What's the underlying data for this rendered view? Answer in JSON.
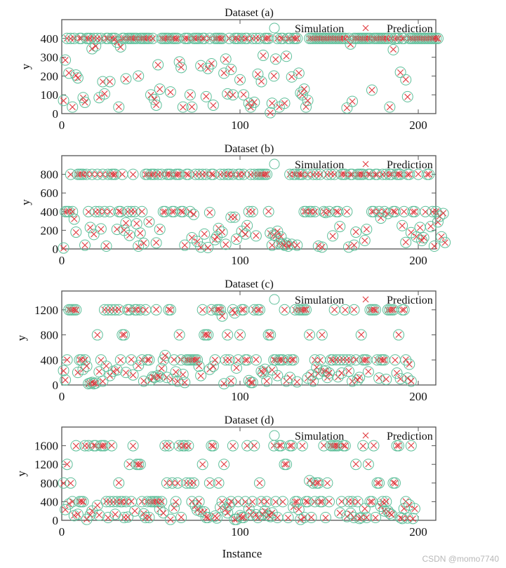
{
  "figure": {
    "xlabel": "Instance",
    "watermark": "CSDN @momo7740",
    "colors": {
      "simulation": "#5fbf9a",
      "prediction": "#e0393e",
      "axis": "#555555"
    }
  },
  "legend": {
    "simulation": "Simulation",
    "prediction": "Prediction"
  },
  "chart_data": [
    {
      "type": "scatter",
      "title": "Dataset (a)",
      "xlabel": "",
      "ylabel": "y",
      "xlim": [
        0,
        210
      ],
      "ylim": [
        0,
        500
      ],
      "xticks": [
        0,
        100,
        200
      ],
      "yticks": [
        0,
        100,
        200,
        300,
        400
      ],
      "legend": [
        "Simulation",
        "Prediction"
      ],
      "x_start": 1,
      "series": [
        {
          "name": "Simulation",
          "marker": "circle",
          "values": [
            70,
            285,
            400,
            215,
            400,
            35,
            400,
            205,
            190,
            400,
            400,
            85,
            60,
            400,
            400,
            400,
            345,
            400,
            360,
            400,
            85,
            400,
            170,
            105,
            400,
            400,
            170,
            400,
            400,
            400,
            380,
            35,
            355,
            400,
            400,
            185,
            400,
            400,
            400,
            400,
            400,
            400,
            200,
            400,
            400,
            400,
            400,
            400,
            400,
            100,
            400,
            75,
            45,
            260,
            130,
            400,
            400,
            400,
            400,
            400,
            115,
            400,
            400,
            400,
            400,
            275,
            245,
            35,
            400,
            400,
            400,
            100,
            35,
            400,
            400,
            400,
            400,
            255,
            400,
            400,
            90,
            240,
            400,
            265,
            45,
            400,
            400,
            400,
            400,
            400,
            215,
            290,
            105,
            400,
            235,
            100,
            400,
            400,
            400,
            180,
            400,
            100,
            400,
            400,
            55,
            35,
            400,
            60,
            400,
            210,
            400,
            170,
            310,
            400,
            400,
            400,
            5,
            55,
            200,
            290,
            400,
            35,
            400,
            400,
            55,
            305,
            400,
            400,
            195,
            400,
            400,
            400,
            215,
            110,
            100,
            130,
            35,
            70,
            400,
            400,
            400,
            400,
            400,
            400,
            400,
            400,
            400,
            400,
            400,
            400,
            400,
            400,
            400,
            400,
            400,
            400,
            400,
            400,
            400,
            30,
            400,
            370,
            65,
            400,
            400,
            400,
            400,
            400,
            400,
            400,
            400,
            400,
            400,
            125,
            400,
            400,
            400,
            400,
            400,
            400,
            400,
            400,
            400,
            35,
            400,
            340,
            400,
            400,
            400,
            220,
            400,
            400,
            180,
            90,
            400,
            400,
            400,
            400,
            400,
            400,
            400,
            400,
            400,
            400,
            400,
            400,
            400,
            400,
            400,
            400,
            400
          ]
        },
        {
          "name": "Prediction",
          "marker": "x",
          "values": "matches Simulation within ~2%"
        }
      ]
    },
    {
      "type": "scatter",
      "title": "Dataset (b)",
      "xlabel": "",
      "ylabel": "y",
      "xlim": [
        0,
        210
      ],
      "ylim": [
        0,
        1000
      ],
      "xticks": [
        0,
        100,
        200
      ],
      "yticks": [
        0,
        200,
        400,
        600,
        800
      ],
      "legend": [
        "Simulation",
        "Prediction"
      ],
      "x_start": 1,
      "series": [
        {
          "name": "Simulation",
          "marker": "circle",
          "values": [
            10,
            400,
            400,
            400,
            800,
            400,
            320,
            180,
            800,
            800,
            800,
            800,
            40,
            800,
            400,
            230,
            800,
            155,
            400,
            800,
            400,
            215,
            800,
            400,
            30,
            800,
            400,
            800,
            800,
            800,
            210,
            400,
            400,
            800,
            200,
            280,
            400,
            145,
            400,
            800,
            400,
            270,
            30,
            170,
            400,
            60,
            800,
            800,
            290,
            800,
            800,
            800,
            65,
            800,
            210,
            800,
            400,
            400,
            800,
            800,
            800,
            400,
            400,
            800,
            800,
            800,
            400,
            400,
            40,
            800,
            800,
            400,
            120,
            370,
            800,
            80,
            800,
            20,
            800,
            160,
            800,
            15,
            390,
            800,
            800,
            100,
            130,
            220,
            800,
            180,
            800,
            50,
            800,
            800,
            340,
            800,
            340,
            105,
            800,
            800,
            190,
            800,
            160,
            250,
            400,
            800,
            400,
            800,
            140,
            800,
            800,
            800,
            800,
            800,
            800,
            400,
            170,
            40,
            150,
            140,
            190,
            60,
            130,
            50,
            40,
            60,
            30,
            800,
            50,
            800,
            800,
            40,
            800,
            800,
            800,
            400,
            400,
            800,
            400,
            400,
            800,
            400,
            800,
            30,
            800,
            20,
            400,
            390,
            800,
            400,
            800,
            140,
            800,
            400,
            400,
            240,
            800,
            800,
            800,
            400,
            20,
            800,
            800,
            40,
            180,
            800,
            800,
            800,
            800,
            90,
            210,
            800,
            800,
            400,
            400,
            800,
            800,
            400,
            330,
            800,
            400,
            800,
            380,
            800,
            800,
            400,
            400,
            800,
            800,
            800,
            250,
            400,
            70,
            800,
            800,
            175,
            400,
            400,
            130,
            800,
            230,
            90,
            120,
            400,
            800,
            800,
            240,
            400,
            30,
            400,
            290,
            350,
            130,
            380,
            70
          ]
        },
        {
          "name": "Prediction",
          "marker": "x",
          "values": "matches Simulation within ~2%"
        }
      ]
    },
    {
      "type": "scatter",
      "title": "Dataset (c)",
      "xlabel": "",
      "ylabel": "y",
      "xlim": [
        0,
        210
      ],
      "ylim": [
        0,
        1500
      ],
      "xticks": [
        0,
        100,
        200
      ],
      "yticks": [
        0,
        400,
        800,
        1200
      ],
      "legend": [
        "Simulation",
        "Prediction"
      ],
      "x_start": 1,
      "series": [
        {
          "name": "Simulation",
          "marker": "circle",
          "values": [
            230,
            80,
            400,
            1200,
            1200,
            1200,
            1200,
            1200,
            200,
            400,
            400,
            250,
            400,
            300,
            20,
            30,
            40,
            20,
            30,
            800,
            210,
            400,
            60,
            1200,
            300,
            1200,
            150,
            1200,
            220,
            1200,
            240,
            1200,
            400,
            800,
            800,
            200,
            1200,
            1200,
            400,
            160,
            1200,
            1200,
            310,
            1200,
            400,
            60,
            1200,
            400,
            400,
            80,
            130,
            120,
            1200,
            150,
            130,
            260,
            400,
            470,
            120,
            1200,
            1200,
            90,
            400,
            210,
            60,
            800,
            400,
            170,
            40,
            400,
            400,
            400,
            400,
            400,
            400,
            400,
            300,
            150,
            1200,
            800,
            800,
            800,
            250,
            1200,
            300,
            400,
            1200,
            1200,
            1200,
            1100,
            20,
            400,
            800,
            400,
            60,
            1200,
            1150,
            270,
            400,
            800,
            1200,
            1200,
            400,
            400,
            70,
            40,
            40,
            1200,
            400,
            1200,
            1200,
            220,
            190,
            250,
            60,
            800,
            800,
            240,
            400,
            400,
            150,
            400,
            400,
            400,
            1200,
            60,
            400,
            120,
            400,
            400,
            1200,
            50,
            1200,
            1200,
            1200,
            1200,
            1200,
            110,
            800,
            160,
            60,
            400,
            280,
            180,
            400,
            800,
            220,
            230,
            120,
            190,
            400,
            400,
            1200,
            400,
            130,
            400,
            190,
            400,
            1200,
            400,
            220,
            400,
            60,
            1200,
            400,
            80,
            120,
            800,
            400,
            400,
            400,
            210,
            1200,
            1200,
            1200,
            1200,
            400,
            110,
            400,
            400,
            400,
            90,
            1200,
            1200,
            1200,
            1200,
            400,
            190,
            800,
            100,
            1200,
            1200,
            400,
            110,
            330,
            60
          ]
        },
        {
          "name": "Prediction",
          "marker": "x",
          "values": "matches Simulation within ~2%; outliers near x=83 (1090) and x=91 (1150)"
        }
      ]
    },
    {
      "type": "scatter",
      "title": "Dataset (d)",
      "xlabel": "Instance",
      "ylabel": "y",
      "xlim": [
        0,
        210
      ],
      "ylim": [
        0,
        2000
      ],
      "xticks": [
        0,
        100,
        200
      ],
      "yticks": [
        0,
        400,
        800,
        1200,
        1600
      ],
      "legend": [
        "Simulation",
        "Prediction"
      ],
      "x_start": 1,
      "series": [
        {
          "name": "Simulation",
          "marker": "circle",
          "values": [
            800,
            230,
            1200,
            350,
            800,
            400,
            100,
            1600,
            130,
            400,
            400,
            400,
            1600,
            20,
            1600,
            120,
            200,
            1600,
            1600,
            320,
            110,
            1600,
            1600,
            1600,
            400,
            60,
            400,
            1600,
            400,
            130,
            400,
            800,
            400,
            400,
            60,
            400,
            70,
            1200,
            400,
            1600,
            200,
            1200,
            1200,
            1200,
            400,
            140,
            60,
            400,
            60,
            400,
            400,
            400,
            400,
            400,
            240,
            400,
            160,
            1600,
            800,
            1600,
            20,
            800,
            260,
            400,
            800,
            1600,
            60,
            1600,
            1600,
            800,
            1600,
            800,
            400,
            800,
            310,
            220,
            400,
            190,
            1200,
            180,
            60,
            60,
            800,
            1600,
            1600,
            90,
            50,
            800,
            280,
            400,
            1200,
            240,
            160,
            330,
            400,
            1600,
            20,
            20,
            400,
            100,
            60,
            60,
            400,
            1600,
            250,
            120,
            400,
            1600,
            120,
            60,
            800,
            400,
            130,
            200,
            400,
            100,
            80,
            160,
            1600,
            400,
            60,
            1600,
            1600,
            400,
            1200,
            1200,
            60,
            1600,
            1600,
            280,
            400,
            400,
            230,
            20,
            1600,
            60,
            400,
            400,
            850,
            60,
            800,
            400,
            800,
            800,
            400,
            400,
            1600,
            60,
            800,
            400,
            1600,
            1600,
            1600,
            1600,
            1600,
            160,
            400,
            1600,
            1600,
            80,
            400,
            150,
            400,
            60,
            1200,
            400,
            40,
            60,
            1600,
            250,
            60,
            1200,
            400,
            400,
            1600,
            60,
            800,
            800,
            300,
            400,
            200,
            400,
            200,
            150,
            120,
            800,
            800,
            1600,
            1600,
            60,
            40,
            250,
            400,
            50,
            330,
            1600,
            40,
            250
          ]
        },
        {
          "name": "Prediction",
          "marker": "x",
          "values": "matches Simulation within ~2%"
        }
      ]
    }
  ]
}
